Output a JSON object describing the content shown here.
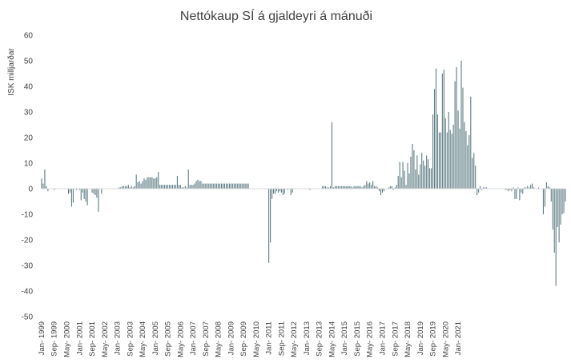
{
  "chart_data": {
    "type": "bar",
    "title": "Nettókaup SÍ á gjaldeyri á mánuði",
    "ylabel": "ISK milljarðar",
    "xlabel": "",
    "ylim": [
      -50,
      60
    ],
    "yticks": [
      60,
      50,
      40,
      30,
      20,
      10,
      0,
      -10,
      -20,
      -30,
      -40,
      -50
    ],
    "grid": false,
    "bar_color": "#5b7a83",
    "start_month": "Jan-1999",
    "xtick_labels": [
      "Jan- 1999",
      "Sep- 1999",
      "May- 2000",
      "Jan- 2001",
      "Sep- 2001",
      "May- 2002",
      "Jan- 2003",
      "Sep- 2003",
      "May- 2004",
      "Jan- 2005",
      "Sep- 2005",
      "May- 2006",
      "Jan- 2007",
      "Sep- 2007",
      "May- 2008",
      "Jan- 2009",
      "Sep- 2009",
      "May- 2010",
      "Jan- 2011",
      "Sep- 2011",
      "May- 2012",
      "Jan- 2013",
      "Sep- 2013",
      "May- 2014",
      "Jan- 2015",
      "Sep- 2015",
      "May- 2016",
      "Jan- 2017",
      "Sep- 2017",
      "May- 2018",
      "Jan- 2019",
      "Sep- 2019",
      "May- 2020",
      "Jan- 2021"
    ],
    "values": [
      4,
      2,
      7.5,
      1,
      -1,
      0,
      0,
      0,
      -0.5,
      0,
      0,
      0,
      0,
      0,
      0,
      0,
      0,
      -2,
      -1.5,
      -7,
      -5.5,
      0,
      -0.5,
      0,
      -0.5,
      -4.5,
      -1.5,
      -4,
      -5,
      -6.5,
      0,
      0,
      -1.5,
      -2,
      -2.5,
      -3.5,
      -9,
      0,
      -2,
      0,
      0,
      0,
      0,
      0,
      0,
      0,
      0,
      0,
      0,
      0.5,
      0.5,
      1,
      1,
      1,
      1,
      1.5,
      0.5,
      1,
      0.5,
      1,
      5.5,
      2.5,
      3,
      2,
      3,
      4,
      3.5,
      4.5,
      4.5,
      4.5,
      4.5,
      4,
      4,
      4.5,
      6.5,
      1.5,
      1.5,
      1.5,
      1.5,
      1.5,
      1.5,
      1.5,
      1.5,
      1.5,
      1.5,
      1.5,
      5,
      1.5,
      1.5,
      0.5,
      0.5,
      1,
      0.5,
      7.5,
      1.5,
      1.5,
      1.5,
      2,
      3,
      3.5,
      3,
      3,
      2,
      2,
      2,
      2,
      2,
      2,
      2,
      2,
      2,
      2,
      2,
      2,
      2,
      2,
      2,
      2,
      2,
      2,
      2,
      2,
      2,
      2,
      2,
      2,
      2,
      2,
      2,
      2,
      2,
      2,
      0,
      0,
      0,
      0,
      0,
      0,
      0,
      0,
      0,
      0,
      0,
      0,
      -29,
      -21,
      -4,
      -2,
      -2,
      -1,
      -1.5,
      -1,
      -1.5,
      -2.5,
      -2,
      0,
      -0.5,
      0,
      -2.5,
      -1.5,
      0,
      0,
      0,
      0,
      0,
      0,
      0,
      0,
      0,
      0,
      -0.5,
      0,
      0,
      0,
      0,
      0,
      0,
      0,
      1,
      1,
      1,
      0.5,
      0.5,
      1,
      26,
      0.5,
      1,
      1,
      1,
      1,
      1,
      1,
      1,
      1,
      1,
      1,
      1,
      0.5,
      1,
      1,
      1,
      1,
      1,
      0.5,
      1,
      1.5,
      3,
      2,
      2.5,
      1.5,
      3,
      1,
      1,
      0.5,
      -1,
      -2.5,
      -1.5,
      -1,
      0,
      0,
      0.5,
      1,
      1,
      -0.5,
      0.5,
      1.5,
      5,
      10.5,
      4.5,
      10.5,
      7,
      1.5,
      10,
      6,
      12.5,
      17.5,
      15,
      7.5,
      13,
      5.5,
      9.5,
      14,
      11,
      9,
      13,
      11.5,
      8,
      8,
      29,
      39,
      47,
      29,
      22,
      22,
      45,
      46.5,
      27.5,
      22,
      30,
      23,
      21.5,
      25,
      42,
      47.5,
      30.5,
      23.5,
      50,
      39.5,
      26,
      22.5,
      17,
      21,
      36,
      12,
      14,
      9,
      -2.5,
      -1.5,
      1,
      -0.5,
      0.5,
      0.5,
      0.5,
      0,
      0,
      0,
      0,
      0,
      0,
      0,
      0,
      0,
      0,
      0,
      -0.5,
      -0.5,
      -1,
      -0.5,
      -1,
      0.5,
      -4,
      -4,
      0.5,
      -4.5,
      -1.5,
      -2,
      0.5,
      0.5,
      1,
      0.5,
      1.5,
      2,
      0.5,
      0,
      0,
      0.5,
      0,
      0,
      -10,
      -7,
      2.5,
      1,
      0.5,
      -5,
      -16,
      -25,
      -38,
      -15,
      -21,
      -14,
      -10,
      -9.5,
      -5
    ]
  }
}
